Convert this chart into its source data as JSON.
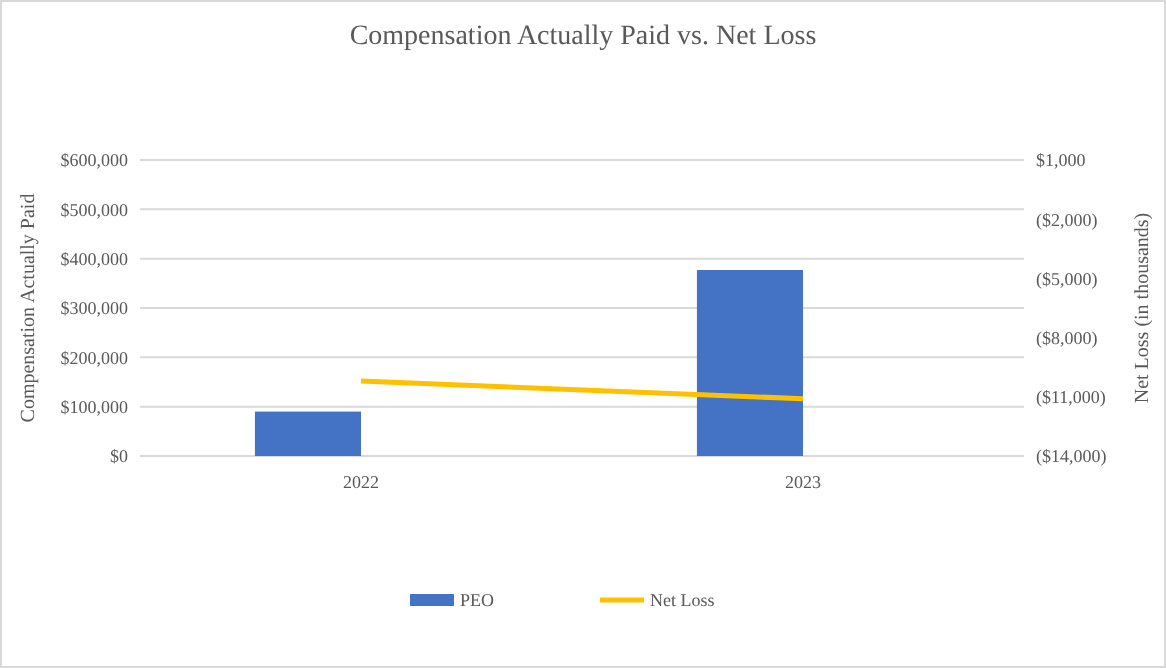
{
  "chart_data": {
    "type": "bar",
    "title": "Compensation Actually Paid vs. Net Loss",
    "ylabel": "Compensation Actually Paid",
    "y2label": "Net Loss (in thousands)",
    "categories": [
      "2022",
      "2023"
    ],
    "series": [
      {
        "name": "PEO",
        "color": "#4472c4",
        "values": [
          90000,
          377000
        ]
      },
      {
        "name": "Net Loss",
        "type": "line",
        "axis": "y2",
        "color": "#ffc000",
        "values": [
          -10200,
          -11100
        ]
      }
    ],
    "ylim": [
      0,
      600000
    ],
    "yticks": [
      {
        "value": 0,
        "label": "$0"
      },
      {
        "value": 100000,
        "label": "$100,000"
      },
      {
        "value": 200000,
        "label": "$200,000"
      },
      {
        "value": 300000,
        "label": "$300,000"
      },
      {
        "value": 400000,
        "label": "$400,000"
      },
      {
        "value": 500000,
        "label": "$500,000"
      },
      {
        "value": 600000,
        "label": "$600,000"
      }
    ],
    "y2lim": [
      -14000,
      1000
    ],
    "y2ticks": [
      {
        "value": 1000,
        "label": "$1,000"
      },
      {
        "value": -2000,
        "label": "($2,000)"
      },
      {
        "value": -5000,
        "label": "($5,000)"
      },
      {
        "value": -8000,
        "label": "($8,000)"
      },
      {
        "value": -11000,
        "label": "($11,000)"
      },
      {
        "value": -14000,
        "label": "($14,000)"
      }
    ],
    "grid": "y",
    "legend": "bottom"
  }
}
